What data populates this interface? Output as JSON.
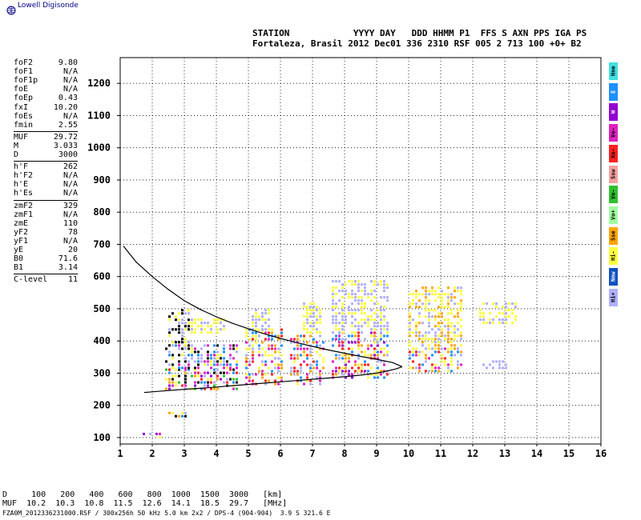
{
  "branding": {
    "logo_text": "Lowell Digisonde"
  },
  "header": {
    "line1": "STATION            YYYY DAY   DDD HHMM P1  FFS S AXN PPS IGA PS",
    "line2": "Fortaleza, Brasil 2012 Dec01 336 2310 RSF 005 2 713 100 +0+ B2"
  },
  "params_group1": [
    {
      "label": "foF2",
      "value": "9.80"
    },
    {
      "label": "foF1",
      "value": "N/A"
    },
    {
      "label": "foF1p",
      "value": "N/A"
    },
    {
      "label": "foE",
      "value": "N/A"
    },
    {
      "label": "foEp",
      "value": "0.43"
    },
    {
      "label": "fxI",
      "value": "10.20"
    },
    {
      "label": "foEs",
      "value": "N/A"
    },
    {
      "label": "fmin",
      "value": "2.55"
    }
  ],
  "params_group2": [
    {
      "label": "MUF",
      "value": "29.72"
    },
    {
      "label": "M",
      "value": "3.033"
    },
    {
      "label": "D",
      "value": "3000"
    }
  ],
  "params_group3": [
    {
      "label": "h'F",
      "value": "262"
    },
    {
      "label": "h'F2",
      "value": "N/A"
    },
    {
      "label": "h'E",
      "value": "N/A"
    },
    {
      "label": "h'Es",
      "value": "N/A"
    }
  ],
  "params_group4": [
    {
      "label": "zmF2",
      "value": "329"
    },
    {
      "label": "zmF1",
      "value": "N/A"
    },
    {
      "label": "zmE",
      "value": "110"
    },
    {
      "label": "yF2",
      "value": "78"
    },
    {
      "label": "yF1",
      "value": "N/A"
    },
    {
      "label": "yE",
      "value": "20"
    },
    {
      "label": "B0",
      "value": "71.6"
    },
    {
      "label": "B1",
      "value": "3.14"
    }
  ],
  "params_group5": [
    {
      "label": "C-level",
      "value": "11"
    }
  ],
  "legend": [
    {
      "label": "Nne",
      "color": "#40e0e0"
    },
    {
      "label": "E",
      "color": "#1e90ff"
    },
    {
      "label": "W",
      "color": "#9400d3"
    },
    {
      "label": "Vo-",
      "color": "#e020c0"
    },
    {
      "label": "Xo-",
      "color": "#ff2020"
    },
    {
      "label": "Ssw",
      "color": "#f4a0a0"
    },
    {
      "label": "Vo-",
      "color": "#30c030"
    },
    {
      "label": "Vo+",
      "color": "#a0ffa0"
    },
    {
      "label": "Sse",
      "color": "#ffa500"
    },
    {
      "label": "Hi-",
      "color": "#ffff40"
    },
    {
      "label": "Nnw",
      "color": "#1050c0"
    },
    {
      "label": "Hi+",
      "color": "#b0b0ff"
    }
  ],
  "footer": {
    "d_row": "D     100   200   400   600   800  1000  1500  3000   [km]",
    "muf_row": "MUF  10.2  10.3  10.8  11.5  12.6  14.1  18.5  29.7   [MHz]",
    "file_row": "FZA0M_2012336231000.RSF / 300x256h 50 kHz 5.0 km 2x2 / DPS-4 (904-904)  3.9 S 321.6 E"
  },
  "chart_data": {
    "type": "scatter",
    "title": "",
    "xlabel": "",
    "ylabel": "",
    "xlim": [
      1,
      16
    ],
    "ylim": [
      80,
      1280
    ],
    "x_ticks": [
      "1",
      "2",
      "3",
      "4",
      "5",
      "6",
      "7",
      "8",
      "9",
      "10",
      "11",
      "12",
      "13",
      "14",
      "15",
      "16"
    ],
    "y_ticks": [
      "100",
      "200",
      "300",
      "400",
      "500",
      "600",
      "700",
      "800",
      "900",
      "1000",
      "1100",
      "1200"
    ],
    "grid": true,
    "profile_curve": {
      "upper": [
        [
          1.1,
          695
        ],
        [
          1.5,
          645
        ],
        [
          2,
          600
        ],
        [
          2.5,
          560
        ],
        [
          3,
          525
        ],
        [
          3.5,
          498
        ],
        [
          4,
          475
        ],
        [
          4.5,
          455
        ],
        [
          5,
          438
        ],
        [
          5.5,
          422
        ],
        [
          6,
          408
        ],
        [
          6.5,
          395
        ],
        [
          7,
          383
        ],
        [
          7.5,
          372
        ],
        [
          8,
          362
        ],
        [
          8.5,
          352
        ],
        [
          9,
          343
        ],
        [
          9.5,
          333
        ],
        [
          9.8,
          320
        ]
      ],
      "lower": [
        [
          1.75,
          240
        ],
        [
          2,
          242
        ],
        [
          2.5,
          246
        ],
        [
          3,
          250
        ],
        [
          3.5,
          253
        ],
        [
          4,
          257
        ],
        [
          4.5,
          261
        ],
        [
          5,
          265
        ],
        [
          5.5,
          269
        ],
        [
          6,
          273
        ],
        [
          6.5,
          277
        ],
        [
          7,
          281
        ],
        [
          7.5,
          285
        ],
        [
          8,
          289
        ],
        [
          8.5,
          294
        ],
        [
          9,
          300
        ],
        [
          9.3,
          306
        ],
        [
          9.6,
          313
        ],
        [
          9.8,
          320
        ]
      ]
    },
    "echo_clusters": [
      {
        "x": [
          1.7,
          2.4
        ],
        "y": [
          105,
          120
        ],
        "colors": [
          "#1e90ff",
          "#e020c0",
          "#ffff40",
          "#9400d3",
          "#b0b0ff"
        ]
      },
      {
        "x": [
          2.5,
          3.1
        ],
        "y": [
          170,
          180
        ],
        "colors": [
          "#1e90ff",
          "#ffff40",
          "#ffa500",
          "#b0b0ff",
          "#000000"
        ]
      },
      {
        "x": [
          2.4,
          4.6
        ],
        "y": [
          255,
          320
        ],
        "colors": [
          "#1e90ff",
          "#ff2020",
          "#e020c0",
          "#ffa500",
          "#ffff40",
          "#30c030",
          "#9400d3",
          "#000000",
          "#b0b0ff"
        ]
      },
      {
        "x": [
          2.4,
          4.6
        ],
        "y": [
          320,
          390
        ],
        "colors": [
          "#000000",
          "#ffff40",
          "#b0b0ff",
          "#1e90ff",
          "#e020c0"
        ]
      },
      {
        "x": [
          2.5,
          3.2
        ],
        "y": [
          380,
          500
        ],
        "colors": [
          "#000000",
          "#000000",
          "#ffff40",
          "#b0b0ff"
        ]
      },
      {
        "x": [
          3.2,
          4.2
        ],
        "y": [
          430,
          470
        ],
        "colors": [
          "#ffff40",
          "#ffff40",
          "#b0b0ff"
        ]
      },
      {
        "x": [
          4.9,
          6.0
        ],
        "y": [
          270,
          440
        ],
        "colors": [
          "#ff2020",
          "#e020c0",
          "#ffa500",
          "#ffff40",
          "#b0b0ff",
          "#1e90ff"
        ]
      },
      {
        "x": [
          5.1,
          5.6
        ],
        "y": [
          440,
          500
        ],
        "colors": [
          "#b0b0ff",
          "#b0b0ff",
          "#ffff40"
        ]
      },
      {
        "x": [
          6.3,
          7.3
        ],
        "y": [
          270,
          420
        ],
        "colors": [
          "#ff2020",
          "#e020c0",
          "#ffa500",
          "#ffff40",
          "#b0b0ff",
          "#1e90ff"
        ]
      },
      {
        "x": [
          6.7,
          7.2
        ],
        "y": [
          430,
          520
        ],
        "colors": [
          "#ffff40",
          "#ffff40",
          "#b0b0ff"
        ]
      },
      {
        "x": [
          7.6,
          9.3
        ],
        "y": [
          290,
          430
        ],
        "colors": [
          "#ff2020",
          "#e020c0",
          "#ffa500",
          "#ffff40",
          "#b0b0ff",
          "#1e90ff",
          "#9400d3"
        ]
      },
      {
        "x": [
          7.6,
          9.3
        ],
        "y": [
          430,
          590
        ],
        "colors": [
          "#ffff40",
          "#ffff40",
          "#b0b0ff",
          "#b0b0ff"
        ]
      },
      {
        "x": [
          10.0,
          11.6
        ],
        "y": [
          310,
          380
        ],
        "colors": [
          "#ff2020",
          "#e020c0",
          "#ffa500",
          "#ffff40",
          "#b0b0ff",
          "#1e90ff"
        ]
      },
      {
        "x": [
          10.0,
          11.6
        ],
        "y": [
          380,
          570
        ],
        "colors": [
          "#ffff40",
          "#ffff40",
          "#b0b0ff",
          "#ffa500"
        ]
      },
      {
        "x": [
          12.2,
          13.3
        ],
        "y": [
          460,
          520
        ],
        "colors": [
          "#ffff40",
          "#b0b0ff",
          "#ffff40"
        ]
      },
      {
        "x": [
          12.3,
          13.0
        ],
        "y": [
          320,
          340
        ],
        "colors": [
          "#b0b0ff",
          "#b0b0ff"
        ]
      }
    ]
  }
}
